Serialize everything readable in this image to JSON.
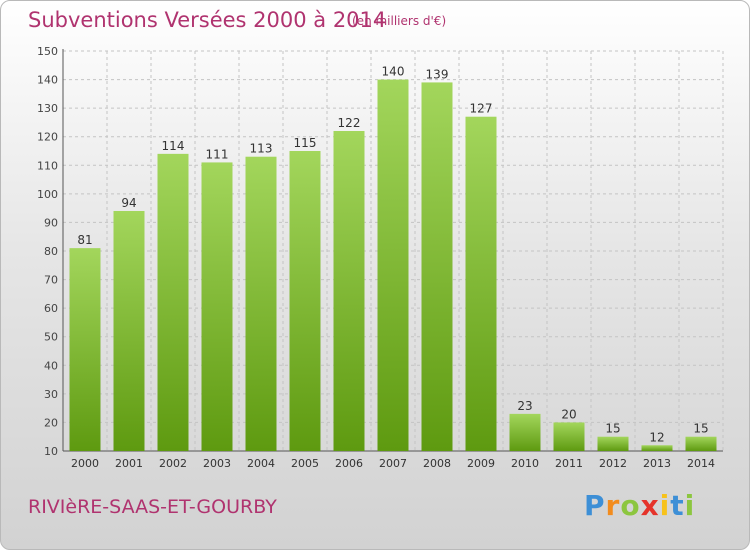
{
  "title": "Subventions Versées 2000 à 2014",
  "subtitle": "(en milliers d'€)",
  "commune": "RIVIèRE-SAAS-ET-GOURBY",
  "logo": {
    "letters": [
      "P",
      "r",
      "o",
      "x",
      "i",
      "t",
      "i"
    ],
    "colors": [
      "#3d8fd6",
      "#f28c1e",
      "#8cc63f",
      "#e5332a",
      "#f7c21a",
      "#3d8fd6",
      "#8cc63f"
    ]
  },
  "colors": {
    "bar_top": "#a3d65c",
    "bar_bottom": "#5e9a10",
    "text_accent": "#b0336f",
    "grid": "#c4c4c4"
  },
  "chart_data": {
    "type": "bar",
    "categories": [
      "2000",
      "2001",
      "2002",
      "2003",
      "2004",
      "2005",
      "2006",
      "2007",
      "2008",
      "2009",
      "2010",
      "2011",
      "2012",
      "2013",
      "2014"
    ],
    "values": [
      81,
      94,
      114,
      111,
      113,
      115,
      122,
      140,
      139,
      127,
      23,
      20,
      15,
      12,
      15
    ],
    "title": "Subventions Versées 2000 à 2014",
    "ylabel": "",
    "xlabel": "",
    "ylim": [
      10,
      150
    ],
    "yticks": [
      10,
      20,
      30,
      40,
      50,
      60,
      70,
      80,
      90,
      100,
      110,
      120,
      130,
      140,
      150
    ],
    "grid": true
  }
}
